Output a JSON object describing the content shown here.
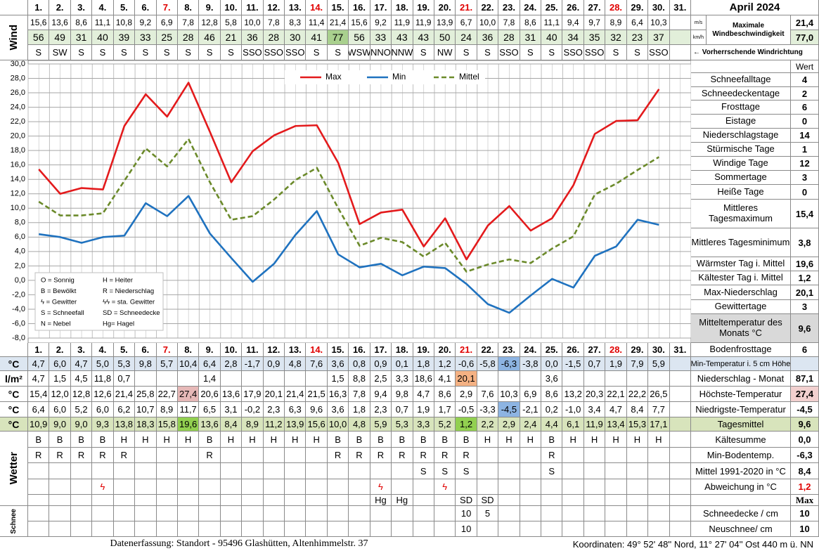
{
  "title": "April 2024",
  "wind": {
    "label": "Wind",
    "unit_ms": "m/s",
    "unit_kmh": "km/h",
    "max_label": "Maximale Windbeschwindigkeit",
    "max_ms": "21,4",
    "max_kmh": "77,0",
    "max_kmh_bg": "#e2efda",
    "direction_note": "← Vorherrschende Windrichtung",
    "ms": [
      "15,6",
      "13,6",
      "8,6",
      "11,1",
      "10,8",
      "9,2",
      "6,9",
      "7,8",
      "12,8",
      "5,8",
      "10,0",
      "7,8",
      "8,3",
      "11,4",
      "21,4",
      "15,6",
      "9,2",
      "11,9",
      "11,9",
      "13,9",
      "6,7",
      "10,0",
      "7,8",
      "8,6",
      "11,1",
      "9,4",
      "9,7",
      "8,9",
      "6,4",
      "10,3",
      null
    ],
    "kmh": [
      "56",
      "49",
      "31",
      "40",
      "39",
      "33",
      "25",
      "28",
      "46",
      "21",
      "36",
      "28",
      "30",
      "41",
      "77",
      "56",
      "33",
      "43",
      "43",
      "50",
      "24",
      "36",
      "28",
      "31",
      "40",
      "34",
      "35",
      "32",
      "23",
      "37",
      null
    ],
    "kmh_bg": "#e2efda",
    "kmh_highlight": {
      "color": "#a9d08e",
      "cells": [
        "77"
      ]
    },
    "direction": [
      "S",
      "SW",
      "S",
      "S",
      "S",
      "S",
      "S",
      "S",
      "S",
      "S",
      "SSO",
      "SSO",
      "SSO",
      "S",
      "S",
      "WSW",
      "NNO",
      "NNW",
      "S",
      "NW",
      "S",
      "S",
      "SSO",
      "S",
      "S",
      "SSO",
      "SSO",
      "S",
      "S",
      "SSO",
      null
    ]
  },
  "chart_data": {
    "type": "line",
    "categories": [
      "1.",
      "2.",
      "3.",
      "4.",
      "5.",
      "6.",
      "7.",
      "8.",
      "9.",
      "10.",
      "11.",
      "12.",
      "13.",
      "14.",
      "15.",
      "16.",
      "17.",
      "18.",
      "19.",
      "20.",
      "21.",
      "22.",
      "23.",
      "24.",
      "25.",
      "26.",
      "27.",
      "28.",
      "29.",
      "30.",
      "31."
    ],
    "series": [
      {
        "name": "Max",
        "color": "#e31a1c",
        "values": [
          15.4,
          12.0,
          12.8,
          12.6,
          21.4,
          25.8,
          22.7,
          27.4,
          20.6,
          13.6,
          17.9,
          20.1,
          21.4,
          21.5,
          16.3,
          7.8,
          9.4,
          9.8,
          4.7,
          8.6,
          2.9,
          7.6,
          10.3,
          6.9,
          8.6,
          13.2,
          20.3,
          22.1,
          22.2,
          26.5,
          null
        ]
      },
      {
        "name": "Min",
        "color": "#1f72bf",
        "values": [
          6.4,
          6.0,
          5.2,
          6.0,
          6.2,
          10.7,
          8.9,
          11.7,
          6.5,
          3.1,
          -0.2,
          2.3,
          6.3,
          9.6,
          3.6,
          1.8,
          2.3,
          0.7,
          1.9,
          1.7,
          -0.5,
          -3.3,
          -4.5,
          -2.1,
          0.2,
          -1.0,
          3.4,
          4.7,
          8.4,
          7.7,
          null
        ]
      },
      {
        "name": "Mittel",
        "color": "#6b8a2a",
        "dash": true,
        "values": [
          10.9,
          9.0,
          9.0,
          9.3,
          13.8,
          18.3,
          15.8,
          19.6,
          13.6,
          8.4,
          8.9,
          11.2,
          13.9,
          15.6,
          10.0,
          4.8,
          5.9,
          5.3,
          3.3,
          5.2,
          1.2,
          2.2,
          2.9,
          2.4,
          4.4,
          6.1,
          11.9,
          13.4,
          15.3,
          17.1,
          null
        ]
      }
    ],
    "ylim": [
      -8,
      30
    ],
    "yticks": [
      {
        "value": 30,
        "label": "30,0"
      },
      {
        "value": 28,
        "label": "28,0"
      },
      {
        "value": 26,
        "label": "26,0"
      },
      {
        "value": 24,
        "label": "24,0"
      },
      {
        "value": 22,
        "label": "22,0"
      },
      {
        "value": 20,
        "label": "20,0"
      },
      {
        "value": 18,
        "label": "18,0"
      },
      {
        "value": 16,
        "label": "16,0"
      },
      {
        "value": 14,
        "label": "14,0"
      },
      {
        "value": 12,
        "label": "12,0"
      },
      {
        "value": 10,
        "label": "10,0"
      },
      {
        "value": 8,
        "label": "8,0"
      },
      {
        "value": 6,
        "label": "6,0"
      },
      {
        "value": 4,
        "label": "4,0"
      },
      {
        "value": 2,
        "label": "2,0"
      },
      {
        "value": 0,
        "label": "0,0"
      },
      {
        "value": -2,
        "label": "-2,0"
      },
      {
        "value": -4,
        "label": "-4,0"
      },
      {
        "value": -6,
        "label": "-6,0"
      },
      {
        "value": -8,
        "label": "-8,0"
      }
    ],
    "grid": true,
    "legend": "top"
  },
  "weather_legend": [
    "O = Sonnig",
    "H = Heiter",
    "B = Bewölkt",
    "R = Niederschlag",
    "ϟ = Gewitter",
    "ϟϟ = sta. Gewitter",
    "S = Schneefall",
    "SD = Schneedecke",
    "N = Nebel",
    "Hg= Hagel"
  ],
  "stats": {
    "header": "Wert",
    "rows": [
      {
        "label": "Schneefalltage",
        "value": "4"
      },
      {
        "label": "Schneedeckentage",
        "value": "2"
      },
      {
        "label": "Frosttage",
        "value": "6"
      },
      {
        "label": "Eistage",
        "value": "0"
      },
      {
        "label": "Niederschlagstage",
        "value": "14"
      },
      {
        "label": "Stürmische Tage",
        "value": "1"
      },
      {
        "label": "Windige Tage",
        "value": "12"
      },
      {
        "label": "Sommertage",
        "value": "3"
      },
      {
        "label": "Heiße Tage",
        "value": "0"
      },
      {
        "label": "Mittleres Tagesmaximum",
        "value": "15,4"
      },
      {
        "label": "Mittleres Tagesminimum",
        "value": "3,8"
      },
      {
        "label": "Wärmster Tag i. Mittel",
        "value": "19,6"
      },
      {
        "label": "Kältester Tag i. Mittel",
        "value": "1,2"
      },
      {
        "label": "Max-Niederschlag",
        "value": "20,1"
      },
      {
        "label": "Gewittertage",
        "value": "3"
      },
      {
        "label": "Mitteltemperatur des Monats °C",
        "value": "9,6",
        "bg": "#d9d9d9"
      },
      {
        "label": "Bodenfrosttage",
        "value": "6"
      }
    ]
  },
  "temps": {
    "rows": [
      {
        "unit": "°C",
        "label": "Min-Temperatur i. 5 cm Höhe",
        "bg": "#dce6f1",
        "highlight": {
          "color": "#8db4e2",
          "cells": [
            "-6,3"
          ]
        },
        "cells": [
          "4,7",
          "6,0",
          "4,7",
          "5,0",
          "5,3",
          "9,8",
          "5,7",
          "10,4",
          "6,4",
          "2,8",
          "-1,7",
          "0,9",
          "4,8",
          "7,6",
          "3,6",
          "0,8",
          "0,9",
          "0,1",
          "1,8",
          "1,2",
          "-0,6",
          "-5,8",
          "-6,3",
          "-3,8",
          "0,0",
          "-1,5",
          "0,7",
          "1,9",
          "7,9",
          "5,9",
          null
        ]
      },
      {
        "unit": "l/m²",
        "label": "Niederschlag - Monat",
        "value": "87,1",
        "highlight": {
          "color": "#f4b183",
          "cells": [
            "20,1"
          ]
        },
        "cells": [
          "4,7",
          "1,5",
          "4,5",
          "11,8",
          "0,7",
          null,
          null,
          null,
          "1,4",
          null,
          null,
          null,
          null,
          null,
          "1,5",
          "8,8",
          "2,5",
          "3,3",
          "18,6",
          "4,1",
          "20,1",
          null,
          null,
          null,
          "3,6",
          null,
          null,
          null,
          null,
          null,
          null
        ]
      },
      {
        "unit": "°C",
        "label": "Höchste-Temperatur",
        "value": "27,4",
        "value_bg": "#f2d0cf",
        "highlight": {
          "color": "#e6b8b7",
          "cells": [
            "27,4"
          ]
        },
        "cells": [
          "15,4",
          "12,0",
          "12,8",
          "12,6",
          "21,4",
          "25,8",
          "22,7",
          "27,4",
          "20,6",
          "13,6",
          "17,9",
          "20,1",
          "21,4",
          "21,5",
          "16,3",
          "7,8",
          "9,4",
          "9,8",
          "4,7",
          "8,6",
          "2,9",
          "7,6",
          "10,3",
          "6,9",
          "8,6",
          "13,2",
          "20,3",
          "22,1",
          "22,2",
          "26,5",
          null
        ]
      },
      {
        "unit": "°C",
        "label": "Niedrigste-Temperatur",
        "value": "-4,5",
        "highlight": {
          "color": "#8db4e2",
          "cells": [
            "-4,5"
          ]
        },
        "cells": [
          "6,4",
          "6,0",
          "5,2",
          "6,0",
          "6,2",
          "10,7",
          "8,9",
          "11,7",
          "6,5",
          "3,1",
          "-0,2",
          "2,3",
          "6,3",
          "9,6",
          "3,6",
          "1,8",
          "2,3",
          "0,7",
          "1,9",
          "1,7",
          "-0,5",
          "-3,3",
          "-4,5",
          "-2,1",
          "0,2",
          "-1,0",
          "3,4",
          "4,7",
          "8,4",
          "7,7",
          null
        ]
      },
      {
        "unit": "°C",
        "label": "Tagesmittel",
        "value": "9,6",
        "bg": "#d8e4bc",
        "highlight": {
          "color": "#92d050",
          "cells": [
            "19,6",
            "1,2"
          ]
        },
        "cells": [
          "10,9",
          "9,0",
          "9,0",
          "9,3",
          "13,8",
          "18,3",
          "15,8",
          "19,6",
          "13,6",
          "8,4",
          "8,9",
          "11,2",
          "13,9",
          "15,6",
          "10,0",
          "4,8",
          "5,9",
          "5,3",
          "3,3",
          "5,2",
          "1,2",
          "2,2",
          "2,9",
          "2,4",
          "4,4",
          "6,1",
          "11,9",
          "13,4",
          "15,3",
          "17,1",
          null
        ]
      }
    ]
  },
  "weather": {
    "label": "Wetter",
    "rows": [
      {
        "label": "Kältesumme",
        "value": "0,0",
        "cells": [
          "B",
          "B",
          "B",
          "B",
          "H",
          "H",
          "H",
          "H",
          "B",
          "H",
          "H",
          "H",
          "H",
          "H",
          "B",
          "B",
          "B",
          "B",
          "B",
          "B",
          "B",
          "H",
          "H",
          "H",
          "B",
          "H",
          "H",
          "H",
          "H",
          "H",
          null
        ]
      },
      {
        "label": "Min-Bodentemp.",
        "value": "-6,3",
        "cells": [
          "R",
          "R",
          "R",
          "R",
          "R",
          null,
          null,
          null,
          "R",
          null,
          null,
          null,
          null,
          null,
          "R",
          "R",
          "R",
          "R",
          "R",
          "R",
          "R",
          null,
          null,
          null,
          "R",
          null,
          null,
          null,
          null,
          null,
          null
        ]
      },
      {
        "label": "Mittel 1991-2020 in °C",
        "value": "8,4",
        "cells": [
          null,
          null,
          null,
          null,
          null,
          null,
          null,
          null,
          null,
          null,
          null,
          null,
          null,
          null,
          null,
          null,
          null,
          null,
          "S",
          "S",
          "S",
          null,
          null,
          null,
          "S",
          null,
          null,
          null,
          null,
          null,
          null
        ]
      },
      {
        "label": "Abweichung in °C",
        "value": "1,2",
        "value_color": "#e00000",
        "color": "#e00000",
        "cells": [
          null,
          null,
          null,
          "ϟ",
          null,
          null,
          null,
          null,
          null,
          null,
          null,
          null,
          null,
          null,
          null,
          null,
          "ϟ",
          null,
          null,
          "ϟ",
          null,
          null,
          null,
          null,
          null,
          null,
          null,
          null,
          null,
          null,
          null
        ]
      },
      {
        "value": "Max",
        "value_font": "serif",
        "cells": [
          null,
          null,
          null,
          null,
          null,
          null,
          null,
          null,
          null,
          null,
          null,
          null,
          null,
          null,
          null,
          null,
          "Hg",
          "Hg",
          null,
          null,
          "SD",
          "SD",
          null,
          null,
          null,
          null,
          null,
          null,
          null,
          null,
          null
        ]
      }
    ]
  },
  "snow": {
    "label": "Schnee",
    "rows": [
      {
        "label": "Schneedecke / cm",
        "value": "10",
        "cells": [
          null,
          null,
          null,
          null,
          null,
          null,
          null,
          null,
          null,
          null,
          null,
          null,
          null,
          null,
          null,
          null,
          null,
          null,
          null,
          null,
          "10",
          "5",
          null,
          null,
          null,
          null,
          null,
          null,
          null,
          null,
          null
        ]
      },
      {
        "label": "Neuschnee/ cm",
        "value": "10",
        "cells": [
          null,
          null,
          null,
          null,
          null,
          null,
          null,
          null,
          null,
          null,
          null,
          null,
          null,
          null,
          null,
          null,
          null,
          null,
          null,
          null,
          "10",
          null,
          null,
          null,
          null,
          null,
          null,
          null,
          null,
          null,
          null
        ]
      }
    ]
  },
  "footer": {
    "left": "Datenerfassung:  Standort -  95496  Glashütten, Altenhimmelstr. 37",
    "right": "Koordinaten:  49° 52' 48'' Nord,   11° 27' 04'' Ost   440 m ü. NN"
  }
}
